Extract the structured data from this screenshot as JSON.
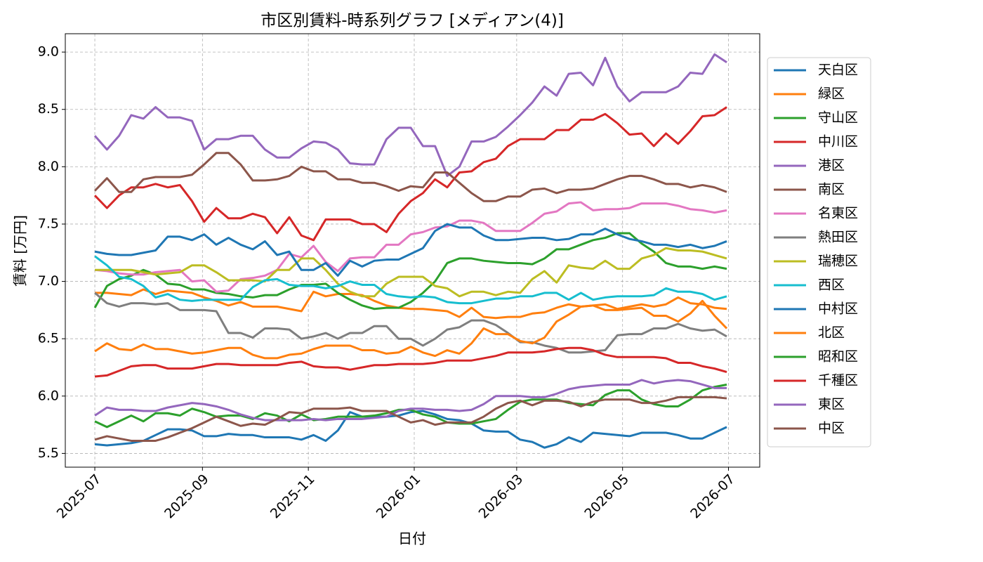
{
  "chart_data": {
    "type": "line",
    "title": "市区別賃料-時系列グラフ [メディアン(4)]",
    "x_label": "日付",
    "y_label": "賃料 [万円]",
    "x": [
      0,
      7,
      14,
      21,
      28,
      35,
      42,
      49,
      56,
      63,
      70,
      77,
      84,
      91,
      98,
      105,
      112,
      119,
      126,
      133,
      140,
      147,
      154,
      161,
      168,
      175,
      182,
      189,
      196,
      203,
      210,
      217,
      224,
      231,
      238,
      245,
      252,
      259,
      266,
      273,
      280,
      287,
      294,
      301,
      308,
      315,
      322,
      329,
      336,
      343,
      350,
      357,
      364
    ],
    "xlim": [
      -17,
      383
    ],
    "xticks": [
      {
        "value": 0,
        "label": "2025-07"
      },
      {
        "value": 62,
        "label": "2025-09"
      },
      {
        "value": 123,
        "label": "2025-11"
      },
      {
        "value": 184,
        "label": "2026-01"
      },
      {
        "value": 243,
        "label": "2026-03"
      },
      {
        "value": 304,
        "label": "2026-05"
      },
      {
        "value": 365,
        "label": "2026-07"
      }
    ],
    "ylim": [
      5.38,
      9.16
    ],
    "yticks": [
      5.5,
      {
        "value": 6,
        "label": "6.0"
      },
      6.5,
      {
        "value": 7,
        "label": "7.0"
      },
      7.5,
      {
        "value": 8,
        "label": "8.0"
      },
      8.5,
      {
        "value": 9,
        "label": "9.0"
      }
    ],
    "grid": true,
    "legend": "right",
    "series": [
      {
        "name": "天白区",
        "color": "#1f77b4",
        "values": [
          5.58,
          5.57,
          5.58,
          5.59,
          5.61,
          5.66,
          5.71,
          5.71,
          5.7,
          5.65,
          5.65,
          5.67,
          5.66,
          5.66,
          5.64,
          5.64,
          5.64,
          5.62,
          5.66,
          5.61,
          5.7,
          5.86,
          5.82,
          5.82,
          5.82,
          5.83,
          5.86,
          5.87,
          5.84,
          5.8,
          5.79,
          5.76,
          5.7,
          5.69,
          5.69,
          5.62,
          5.6,
          5.55,
          5.58,
          5.64,
          5.6,
          5.68,
          5.67,
          5.66,
          5.65,
          5.68,
          5.68,
          5.68,
          5.66,
          5.63,
          5.63,
          5.68,
          5.73
        ]
      },
      {
        "name": "緑区",
        "color": "#ff7f0e",
        "values": [
          6.9,
          6.9,
          6.89,
          6.88,
          6.93,
          6.89,
          6.92,
          6.91,
          6.9,
          6.86,
          6.83,
          6.79,
          6.82,
          6.78,
          6.78,
          6.78,
          6.76,
          6.74,
          6.91,
          6.87,
          6.89,
          6.89,
          6.88,
          6.83,
          6.79,
          6.77,
          6.76,
          6.76,
          6.75,
          6.74,
          6.69,
          6.77,
          6.69,
          6.68,
          6.69,
          6.69,
          6.72,
          6.73,
          6.77,
          6.8,
          6.78,
          6.79,
          6.8,
          6.76,
          6.78,
          6.8,
          6.78,
          6.8,
          6.86,
          6.81,
          6.8,
          6.77,
          6.76
        ]
      },
      {
        "name": "守山区",
        "color": "#2ca02c",
        "values": [
          6.77,
          6.96,
          7.02,
          7.05,
          7.1,
          7.06,
          6.98,
          6.97,
          6.93,
          6.93,
          6.9,
          6.89,
          6.87,
          6.86,
          6.88,
          6.88,
          6.93,
          6.97,
          6.97,
          6.98,
          6.9,
          6.84,
          6.79,
          6.76,
          6.77,
          6.77,
          6.82,
          6.9,
          7.0,
          7.16,
          7.2,
          7.2,
          7.18,
          7.17,
          7.16,
          7.16,
          7.15,
          7.2,
          7.28,
          7.28,
          7.32,
          7.36,
          7.38,
          7.42,
          7.42,
          7.33,
          7.26,
          7.16,
          7.13,
          7.13,
          7.11,
          7.13,
          7.11
        ]
      },
      {
        "name": "中川区",
        "color": "#d62728",
        "values": [
          7.75,
          7.64,
          7.75,
          7.82,
          7.82,
          7.85,
          7.82,
          7.84,
          7.7,
          7.52,
          7.64,
          7.55,
          7.55,
          7.59,
          7.56,
          7.42,
          7.56,
          7.4,
          7.36,
          7.54,
          7.54,
          7.54,
          7.5,
          7.5,
          7.43,
          7.59,
          7.7,
          7.77,
          7.89,
          7.82,
          7.95,
          7.96,
          8.04,
          8.07,
          8.18,
          8.24,
          8.24,
          8.24,
          8.32,
          8.32,
          8.41,
          8.41,
          8.46,
          8.38,
          8.28,
          8.29,
          8.18,
          8.29,
          8.2,
          8.31,
          8.44,
          8.45,
          8.52
        ]
      },
      {
        "name": "港区",
        "color": "#9467bd",
        "values": [
          8.27,
          8.15,
          8.27,
          8.45,
          8.42,
          8.52,
          8.43,
          8.43,
          8.4,
          8.15,
          8.24,
          8.24,
          8.27,
          8.27,
          8.15,
          8.08,
          8.08,
          8.16,
          8.22,
          8.21,
          8.15,
          8.03,
          8.02,
          8.02,
          8.24,
          8.34,
          8.34,
          8.18,
          8.18,
          7.92,
          8.0,
          8.22,
          8.22,
          8.26,
          8.35,
          8.45,
          8.56,
          8.7,
          8.62,
          8.81,
          8.82,
          8.71,
          8.95,
          8.7,
          8.57,
          8.65,
          8.65,
          8.65,
          8.7,
          8.82,
          8.81,
          8.98,
          8.91
        ]
      },
      {
        "name": "南区",
        "color": "#8c564b",
        "values": [
          7.79,
          7.9,
          7.78,
          7.78,
          7.89,
          7.91,
          7.91,
          7.91,
          7.93,
          8.02,
          8.12,
          8.12,
          8.02,
          7.88,
          7.88,
          7.89,
          7.92,
          8.0,
          7.96,
          7.96,
          7.89,
          7.89,
          7.86,
          7.86,
          7.83,
          7.79,
          7.83,
          7.82,
          7.95,
          7.95,
          7.86,
          7.77,
          7.7,
          7.7,
          7.74,
          7.74,
          7.8,
          7.81,
          7.77,
          7.8,
          7.8,
          7.81,
          7.85,
          7.89,
          7.92,
          7.92,
          7.89,
          7.85,
          7.85,
          7.82,
          7.84,
          7.82,
          7.78
        ]
      },
      {
        "name": "名東区",
        "color": "#e377c2",
        "values": [
          7.1,
          7.09,
          7.07,
          7.06,
          7.06,
          7.08,
          7.09,
          7.1,
          7.0,
          7.01,
          6.91,
          6.92,
          7.02,
          7.03,
          7.05,
          7.1,
          7.24,
          7.21,
          7.31,
          7.17,
          7.09,
          7.2,
          7.21,
          7.21,
          7.32,
          7.32,
          7.41,
          7.43,
          7.47,
          7.48,
          7.53,
          7.53,
          7.51,
          7.44,
          7.44,
          7.44,
          7.51,
          7.59,
          7.61,
          7.68,
          7.69,
          7.62,
          7.63,
          7.63,
          7.64,
          7.68,
          7.68,
          7.68,
          7.66,
          7.63,
          7.62,
          7.6,
          7.62
        ]
      },
      {
        "name": "熱田区",
        "color": "#7f7f7f",
        "values": [
          6.9,
          6.81,
          6.78,
          6.81,
          6.81,
          6.8,
          6.81,
          6.75,
          6.75,
          6.75,
          6.74,
          6.55,
          6.55,
          6.51,
          6.59,
          6.59,
          6.58,
          6.5,
          6.52,
          6.55,
          6.5,
          6.55,
          6.55,
          6.61,
          6.61,
          6.5,
          6.5,
          6.44,
          6.5,
          6.58,
          6.6,
          6.66,
          6.66,
          6.62,
          6.55,
          6.47,
          6.47,
          6.44,
          6.42,
          6.38,
          6.38,
          6.39,
          6.4,
          6.53,
          6.54,
          6.54,
          6.59,
          6.59,
          6.63,
          6.59,
          6.57,
          6.58,
          6.52
        ]
      },
      {
        "name": "瑞穂区",
        "color": "#bcbd22",
        "values": [
          7.1,
          7.1,
          7.1,
          7.1,
          7.08,
          7.06,
          7.07,
          7.08,
          7.14,
          7.14,
          7.08,
          7.01,
          7.01,
          7.01,
          7.0,
          7.1,
          7.1,
          7.2,
          7.2,
          7.1,
          6.98,
          6.91,
          6.87,
          6.87,
          6.98,
          7.04,
          7.04,
          7.04,
          6.96,
          6.94,
          6.87,
          6.91,
          6.91,
          6.88,
          6.91,
          6.9,
          7.02,
          7.09,
          6.99,
          7.14,
          7.12,
          7.11,
          7.18,
          7.11,
          7.11,
          7.2,
          7.23,
          7.29,
          7.27,
          7.27,
          7.26,
          7.23,
          7.2
        ]
      },
      {
        "name": "西区",
        "color": "#17becf",
        "values": [
          7.22,
          7.14,
          7.04,
          7.02,
          6.96,
          6.86,
          6.89,
          6.84,
          6.83,
          6.84,
          6.84,
          6.84,
          6.84,
          6.95,
          7.01,
          7.02,
          6.97,
          6.96,
          6.96,
          6.94,
          6.96,
          7.0,
          6.97,
          6.97,
          6.89,
          6.87,
          6.86,
          6.87,
          6.86,
          6.82,
          6.81,
          6.81,
          6.83,
          6.85,
          6.85,
          6.87,
          6.87,
          6.9,
          6.9,
          6.84,
          6.9,
          6.84,
          6.86,
          6.87,
          6.87,
          6.87,
          6.88,
          6.94,
          6.91,
          6.91,
          6.89,
          6.84,
          6.87
        ]
      },
      {
        "name": "中村区",
        "color": "#1f77b4",
        "values": [
          7.26,
          7.24,
          7.23,
          7.23,
          7.25,
          7.27,
          7.39,
          7.39,
          7.36,
          7.41,
          7.32,
          7.38,
          7.32,
          7.28,
          7.35,
          7.23,
          7.26,
          7.1,
          7.1,
          7.16,
          7.05,
          7.18,
          7.13,
          7.18,
          7.19,
          7.19,
          7.24,
          7.29,
          7.44,
          7.5,
          7.47,
          7.47,
          7.4,
          7.36,
          7.36,
          7.37,
          7.38,
          7.38,
          7.36,
          7.37,
          7.41,
          7.41,
          7.46,
          7.41,
          7.37,
          7.35,
          7.32,
          7.32,
          7.3,
          7.32,
          7.29,
          7.31,
          7.35
        ]
      },
      {
        "name": "北区",
        "color": "#ff7f0e",
        "values": [
          6.39,
          6.46,
          6.41,
          6.4,
          6.45,
          6.41,
          6.41,
          6.39,
          6.37,
          6.38,
          6.4,
          6.42,
          6.42,
          6.36,
          6.33,
          6.33,
          6.36,
          6.37,
          6.41,
          6.44,
          6.44,
          6.44,
          6.4,
          6.4,
          6.37,
          6.38,
          6.43,
          6.38,
          6.35,
          6.4,
          6.37,
          6.46,
          6.59,
          6.54,
          6.54,
          6.48,
          6.46,
          6.51,
          6.65,
          6.71,
          6.78,
          6.79,
          6.75,
          6.75,
          6.76,
          6.77,
          6.7,
          6.7,
          6.65,
          6.72,
          6.83,
          6.7,
          6.59
        ]
      },
      {
        "name": "昭和区",
        "color": "#2ca02c",
        "values": [
          5.78,
          5.73,
          5.78,
          5.83,
          5.78,
          5.85,
          5.85,
          5.83,
          5.89,
          5.86,
          5.82,
          5.83,
          5.83,
          5.8,
          5.85,
          5.83,
          5.78,
          5.84,
          5.79,
          5.8,
          5.82,
          5.82,
          5.82,
          5.83,
          5.85,
          5.88,
          5.88,
          5.84,
          5.82,
          5.77,
          5.76,
          5.76,
          5.78,
          5.8,
          5.88,
          5.95,
          5.97,
          5.97,
          5.97,
          5.94,
          5.93,
          5.92,
          6.01,
          6.05,
          6.05,
          5.97,
          5.93,
          5.91,
          5.91,
          5.97,
          6.05,
          6.08,
          6.1
        ]
      },
      {
        "name": "千種区",
        "color": "#d62728",
        "values": [
          6.17,
          6.18,
          6.22,
          6.26,
          6.27,
          6.27,
          6.24,
          6.24,
          6.24,
          6.26,
          6.28,
          6.28,
          6.27,
          6.27,
          6.27,
          6.27,
          6.29,
          6.3,
          6.26,
          6.25,
          6.25,
          6.23,
          6.25,
          6.27,
          6.27,
          6.28,
          6.28,
          6.28,
          6.29,
          6.31,
          6.31,
          6.31,
          6.33,
          6.35,
          6.38,
          6.38,
          6.38,
          6.39,
          6.41,
          6.42,
          6.42,
          6.4,
          6.36,
          6.34,
          6.34,
          6.34,
          6.34,
          6.33,
          6.29,
          6.29,
          6.26,
          6.24,
          6.21
        ]
      },
      {
        "name": "東区",
        "color": "#9467bd",
        "values": [
          5.83,
          5.9,
          5.88,
          5.88,
          5.87,
          5.87,
          5.9,
          5.92,
          5.94,
          5.93,
          5.91,
          5.88,
          5.84,
          5.81,
          5.79,
          5.79,
          5.79,
          5.79,
          5.8,
          5.79,
          5.8,
          5.8,
          5.8,
          5.81,
          5.82,
          5.87,
          5.89,
          5.89,
          5.88,
          5.88,
          5.87,
          5.88,
          5.93,
          6.0,
          6.0,
          6.0,
          5.99,
          5.99,
          6.02,
          6.06,
          6.08,
          6.09,
          6.1,
          6.1,
          6.1,
          6.14,
          6.11,
          6.13,
          6.14,
          6.13,
          6.1,
          6.07,
          6.07
        ]
      },
      {
        "name": "中区",
        "color": "#8c564b",
        "values": [
          5.62,
          5.65,
          5.63,
          5.61,
          5.61,
          5.61,
          5.64,
          5.68,
          5.72,
          5.77,
          5.82,
          5.78,
          5.74,
          5.76,
          5.75,
          5.8,
          5.86,
          5.85,
          5.89,
          5.89,
          5.89,
          5.9,
          5.87,
          5.87,
          5.87,
          5.82,
          5.77,
          5.79,
          5.75,
          5.77,
          5.77,
          5.77,
          5.82,
          5.89,
          5.94,
          5.96,
          5.92,
          5.96,
          5.96,
          5.95,
          5.91,
          5.95,
          5.97,
          5.97,
          5.97,
          5.94,
          5.94,
          5.96,
          5.99,
          5.99,
          5.99,
          5.99,
          5.98
        ]
      }
    ]
  }
}
